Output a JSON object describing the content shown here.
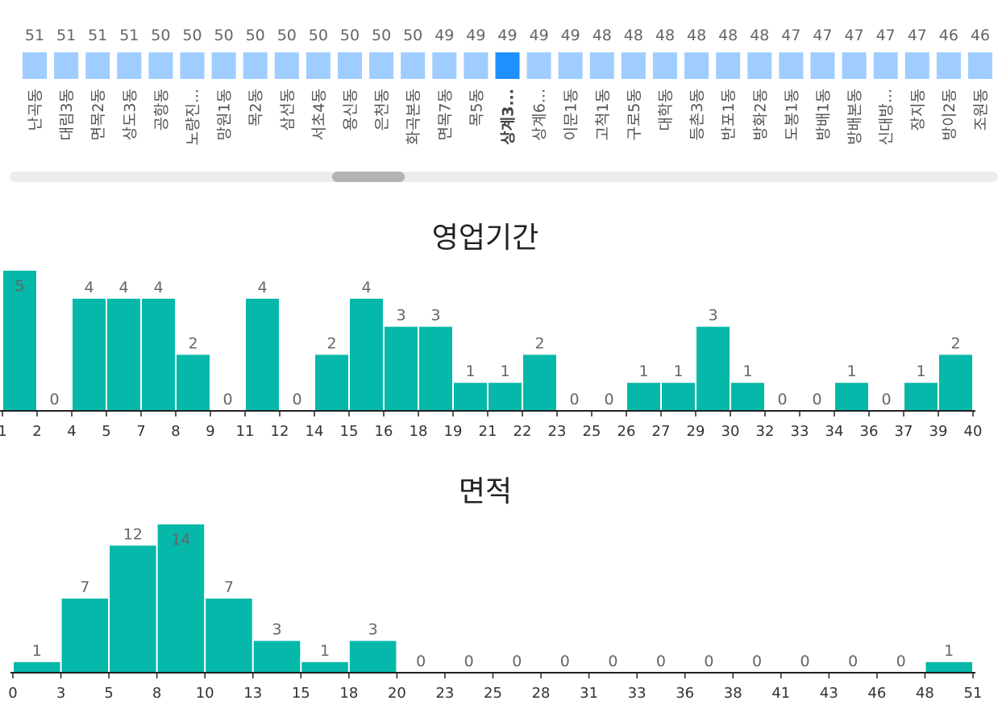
{
  "colors": {
    "top_bar": "#9fcdff",
    "top_bar_selected": "#1e90ff",
    "histogram_bar": "#06b8a9",
    "scrollbar_track": "#ededed",
    "scrollbar_thumb": "#b3b3b3"
  },
  "chart_data": [
    {
      "type": "bar",
      "categories": [
        "난곡동",
        "대림3동",
        "면목2동",
        "상도3동",
        "공항동",
        "노량진...",
        "망원1동",
        "목2동",
        "삼선동",
        "서초4동",
        "용신동",
        "은천동",
        "화곡본동",
        "면목7동",
        "목5동",
        "상계3...",
        "상계6...",
        "이문1동",
        "고척1동",
        "구로5동",
        "대학동",
        "등촌3동",
        "반포1동",
        "방화2동",
        "도봉1동",
        "방배1동",
        "방배본동",
        "신대방...",
        "장지동",
        "방이2동",
        "조원동"
      ],
      "values": [
        51,
        51,
        51,
        51,
        50,
        50,
        50,
        50,
        50,
        50,
        50,
        50,
        50,
        49,
        49,
        49,
        49,
        49,
        48,
        48,
        48,
        48,
        48,
        48,
        47,
        47,
        47,
        47,
        47,
        46,
        46
      ],
      "selected_index": 15
    },
    {
      "type": "bar",
      "title": "영업기간",
      "values": [
        5,
        0,
        4,
        4,
        4,
        2,
        0,
        4,
        0,
        2,
        4,
        3,
        3,
        1,
        1,
        2,
        0,
        0,
        1,
        1,
        3,
        1,
        0,
        0,
        1,
        0,
        1,
        2
      ],
      "tick_labels": [
        "1",
        "2",
        "4",
        "5",
        "7",
        "8",
        "9",
        "11",
        "12",
        "14",
        "15",
        "16",
        "18",
        "19",
        "21",
        "22",
        "23",
        "25",
        "26",
        "27",
        "29",
        "30",
        "32",
        "33",
        "34",
        "36",
        "37",
        "39",
        "40"
      ],
      "ylim": [
        0,
        5
      ]
    },
    {
      "type": "bar",
      "title": "면적",
      "values": [
        1,
        7,
        12,
        14,
        7,
        3,
        1,
        3,
        0,
        0,
        0,
        0,
        0,
        0,
        0,
        0,
        0,
        0,
        0,
        1
      ],
      "tick_labels": [
        "0",
        "3",
        "5",
        "8",
        "10",
        "13",
        "15",
        "18",
        "20",
        "23",
        "25",
        "28",
        "31",
        "33",
        "36",
        "38",
        "41",
        "43",
        "46",
        "48",
        "51"
      ],
      "ylim": [
        0,
        14
      ]
    }
  ]
}
